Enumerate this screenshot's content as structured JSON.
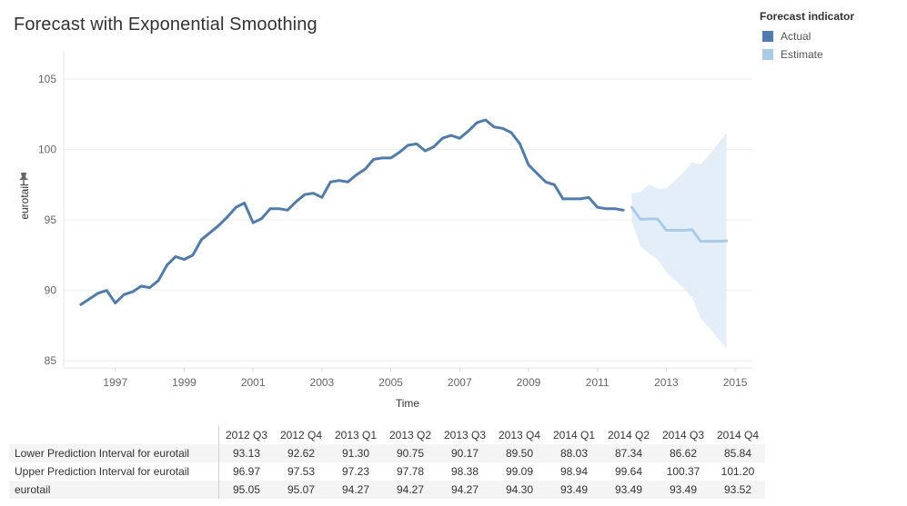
{
  "title": "Forecast with Exponential Smoothing",
  "legend": {
    "title": "Forecast indicator",
    "items": [
      {
        "label": "Actual",
        "color": "#4f7cac"
      },
      {
        "label": "Estimate",
        "color": "#a7cbe9"
      }
    ]
  },
  "chart_data": {
    "type": "line",
    "title": "Forecast with Exponential Smoothing",
    "xlabel": "Time",
    "ylabel": "eurotail",
    "xlim": [
      1995.5,
      2015.5
    ],
    "ylim": [
      84.5,
      107
    ],
    "x_ticks": [
      "1997",
      "1999",
      "2001",
      "2003",
      "2005",
      "2007",
      "2009",
      "2011",
      "2013",
      "2015"
    ],
    "y_ticks": [
      "85",
      "90",
      "95",
      "100",
      "105"
    ],
    "grid": true,
    "legend_position": "top-right",
    "series": [
      {
        "name": "Actual",
        "color": "#4f7cac",
        "x": [
          1996.0,
          1996.25,
          1996.5,
          1996.75,
          1997.0,
          1997.25,
          1997.5,
          1997.75,
          1998.0,
          1998.25,
          1998.5,
          1998.75,
          1999.0,
          1999.25,
          1999.5,
          1999.75,
          2000.0,
          2000.25,
          2000.5,
          2000.75,
          2001.0,
          2001.25,
          2001.5,
          2001.75,
          2002.0,
          2002.25,
          2002.5,
          2002.75,
          2003.0,
          2003.25,
          2003.5,
          2003.75,
          2004.0,
          2004.25,
          2004.5,
          2004.75,
          2005.0,
          2005.25,
          2005.5,
          2005.75,
          2006.0,
          2006.25,
          2006.5,
          2006.75,
          2007.0,
          2007.25,
          2007.5,
          2007.75,
          2008.0,
          2008.25,
          2008.5,
          2008.75,
          2009.0,
          2009.25,
          2009.5,
          2009.75,
          2010.0,
          2010.25,
          2010.5,
          2010.75,
          2011.0,
          2011.25,
          2011.5,
          2011.75
        ],
        "values": [
          89.0,
          89.4,
          89.8,
          90.0,
          89.1,
          89.7,
          89.9,
          90.3,
          90.2,
          90.7,
          91.8,
          92.4,
          92.2,
          92.5,
          93.6,
          94.1,
          94.6,
          95.2,
          95.9,
          96.2,
          94.8,
          95.1,
          95.8,
          95.8,
          95.7,
          96.3,
          96.8,
          96.9,
          96.6,
          97.7,
          97.8,
          97.7,
          98.2,
          98.6,
          99.3,
          99.4,
          99.4,
          99.8,
          100.3,
          100.4,
          99.9,
          100.2,
          100.8,
          101.0,
          100.8,
          101.3,
          101.9,
          102.1,
          101.6,
          101.5,
          101.2,
          100.4,
          98.9,
          98.3,
          97.7,
          97.5,
          96.5,
          96.5,
          96.5,
          96.6,
          95.9,
          95.8,
          95.8,
          95.7
        ]
      },
      {
        "name": "Estimate",
        "color": "#a7cbe9",
        "x": [
          2012.0,
          2012.25,
          2012.5,
          2012.75,
          2013.0,
          2013.25,
          2013.5,
          2013.75,
          2014.0,
          2014.25,
          2014.5,
          2014.75
        ],
        "values": [
          95.9,
          95.05,
          95.07,
          95.07,
          94.27,
          94.27,
          94.27,
          94.3,
          93.49,
          93.49,
          93.49,
          93.52
        ],
        "lower": [
          94.9,
          93.13,
          92.62,
          92.2,
          91.3,
          90.75,
          90.17,
          89.5,
          88.03,
          87.34,
          86.62,
          85.84
        ],
        "upper": [
          96.9,
          96.97,
          97.53,
          97.23,
          97.23,
          97.78,
          98.38,
          99.09,
          98.94,
          99.64,
          100.37,
          101.2
        ]
      }
    ]
  },
  "table": {
    "columns": [
      "2012 Q3",
      "2012 Q4",
      "2013 Q1",
      "2013 Q2",
      "2013 Q3",
      "2013 Q4",
      "2014 Q1",
      "2014 Q2",
      "2014 Q3",
      "2014 Q4"
    ],
    "rows": [
      {
        "label": "Lower Prediction Interval for eurotail",
        "values": [
          "93.13",
          "92.62",
          "91.30",
          "90.75",
          "90.17",
          "89.50",
          "88.03",
          "87.34",
          "86.62",
          "85.84"
        ]
      },
      {
        "label": "Upper Prediction Interval for eurotail",
        "values": [
          "96.97",
          "97.53",
          "97.23",
          "97.78",
          "98.38",
          "99.09",
          "98.94",
          "99.64",
          "100.37",
          "101.20"
        ]
      },
      {
        "label": "eurotail",
        "values": [
          "95.05",
          "95.07",
          "94.27",
          "94.27",
          "94.27",
          "94.30",
          "93.49",
          "93.49",
          "93.49",
          "93.52"
        ]
      }
    ]
  }
}
